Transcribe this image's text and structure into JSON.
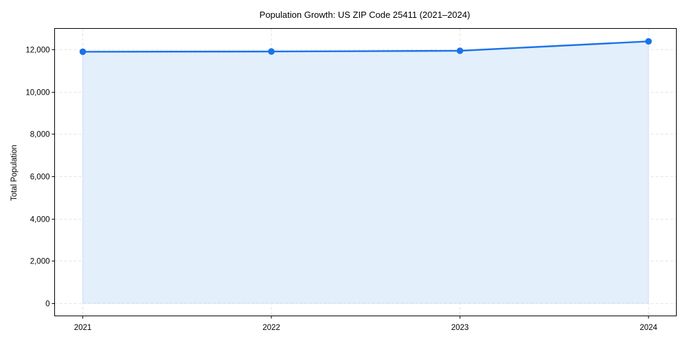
{
  "chart_data": {
    "type": "line",
    "title": "Population Growth: US ZIP Code 25411 (2021–2024)",
    "xlabel": "",
    "ylabel": "Total Population",
    "categories": [
      "2021",
      "2022",
      "2023",
      "2024"
    ],
    "series": [
      {
        "name": "Total Population",
        "values": [
          11890,
          11900,
          11935,
          12380
        ],
        "color": "#1a73e8",
        "fill": "#e3eefc"
      }
    ],
    "yticks": [
      0,
      2000,
      4000,
      6000,
      8000,
      10000,
      12000
    ],
    "ytick_labels": [
      "0",
      "2,000",
      "4,000",
      "6,000",
      "8,000",
      "10,000",
      "12,000"
    ],
    "ylim": [
      -620,
      13000
    ],
    "grid": true,
    "legend": null,
    "area_fill": true,
    "markers": true
  }
}
